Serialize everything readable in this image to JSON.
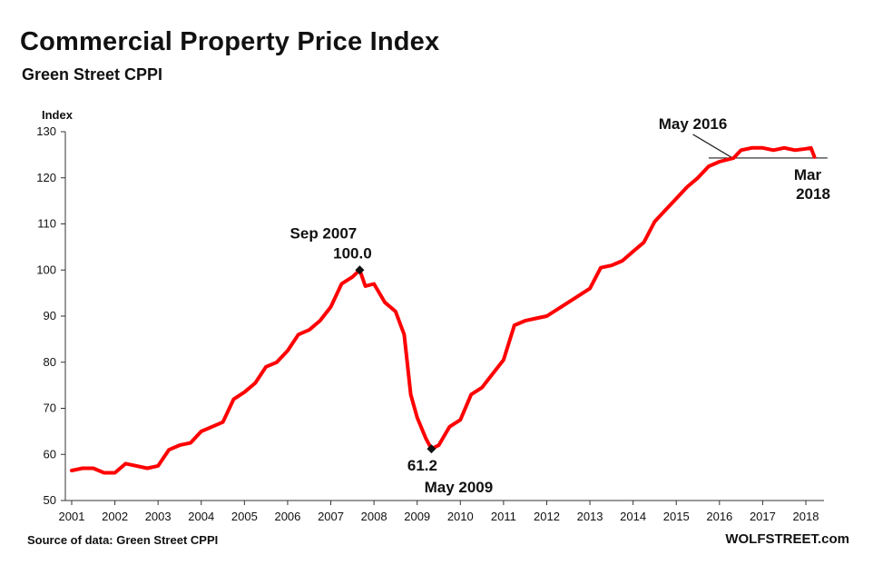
{
  "header": {
    "title": "Commercial Property Price Index",
    "subtitle": "Green Street CPPI"
  },
  "footer": {
    "source": "Source of data: Green Street CPPI",
    "credit": "WOLFSTREET.com"
  },
  "colors": {
    "line": "#ff0000",
    "axis": "#333333",
    "marker": "#111111",
    "reference": "#222222"
  },
  "chart_data": {
    "type": "line",
    "title": "Commercial Property Price Index",
    "subtitle": "Green Street CPPI",
    "ylabel": "Index",
    "xlabel": "",
    "ylim": [
      50,
      130
    ],
    "xlim": [
      2001,
      2018.3
    ],
    "yticks": [
      50,
      60,
      70,
      80,
      90,
      100,
      110,
      120,
      130
    ],
    "xticks": [
      "2001",
      "2002",
      "2003",
      "2004",
      "2005",
      "2006",
      "2007",
      "2008",
      "2009",
      "2010",
      "2011",
      "2012",
      "2013",
      "2014",
      "2015",
      "2016",
      "2017",
      "2018"
    ],
    "grid": false,
    "legend": "none",
    "series": [
      {
        "x": [
          2001.0,
          2001.25,
          2001.5,
          2001.75,
          2002.0,
          2002.25,
          2002.5,
          2002.75,
          2003.0,
          2003.25,
          2003.5,
          2003.75,
          2004.0,
          2004.25,
          2004.5,
          2004.75,
          2005.0,
          2005.25,
          2005.5,
          2005.75,
          2006.0,
          2006.25,
          2006.5,
          2006.75,
          2007.0,
          2007.25,
          2007.5,
          2007.67,
          2007.8,
          2008.0,
          2008.25,
          2008.5,
          2008.7,
          2008.85,
          2009.0,
          2009.2,
          2009.33,
          2009.5,
          2009.75,
          2010.0,
          2010.25,
          2010.5,
          2010.75,
          2011.0,
          2011.25,
          2011.5,
          2011.75,
          2012.0,
          2012.25,
          2012.5,
          2012.75,
          2013.0,
          2013.25,
          2013.5,
          2013.75,
          2014.0,
          2014.25,
          2014.5,
          2014.75,
          2015.0,
          2015.25,
          2015.5,
          2015.75,
          2016.0,
          2016.33,
          2016.5,
          2016.75,
          2017.0,
          2017.25,
          2017.5,
          2017.75,
          2018.0,
          2018.12,
          2018.2
        ],
        "y": [
          56.5,
          57.0,
          57.0,
          56.0,
          56.0,
          58.0,
          57.5,
          57.0,
          57.5,
          61.0,
          62.0,
          62.5,
          65.0,
          66.0,
          67.0,
          72.0,
          73.5,
          75.5,
          79.0,
          80.0,
          82.5,
          86.0,
          87.0,
          89.0,
          92.0,
          97.0,
          98.5,
          100.0,
          96.5,
          97.0,
          93.0,
          91.0,
          86.0,
          73.0,
          68.0,
          63.5,
          61.2,
          62.0,
          66.0,
          67.5,
          73.0,
          74.5,
          77.5,
          80.5,
          88.0,
          89.0,
          89.5,
          90.0,
          91.5,
          93.0,
          94.5,
          96.0,
          100.5,
          101.0,
          102.0,
          104.0,
          106.0,
          110.5,
          113.0,
          115.5,
          118.0,
          120.0,
          122.5,
          123.5,
          124.3,
          126.0,
          126.5,
          126.5,
          126.0,
          126.5,
          126.0,
          126.3,
          126.5,
          124.5
        ]
      }
    ],
    "annotations": [
      {
        "label_top": "Sep 2007",
        "label_bottom": "100.0",
        "x": 2007.67,
        "y": 100.0
      },
      {
        "label_top": "61.2",
        "label_bottom": "May 2009",
        "x": 2009.33,
        "y": 61.2
      },
      {
        "label": "May 2016",
        "x": 2016.33,
        "y": 124.3
      },
      {
        "label_top": "Mar",
        "label_bottom": "2018",
        "x": 2018.2,
        "y": 124.3
      }
    ],
    "reference_line": {
      "y": 124.3,
      "x_start": 2015.75,
      "x_end": 2018.5
    }
  }
}
